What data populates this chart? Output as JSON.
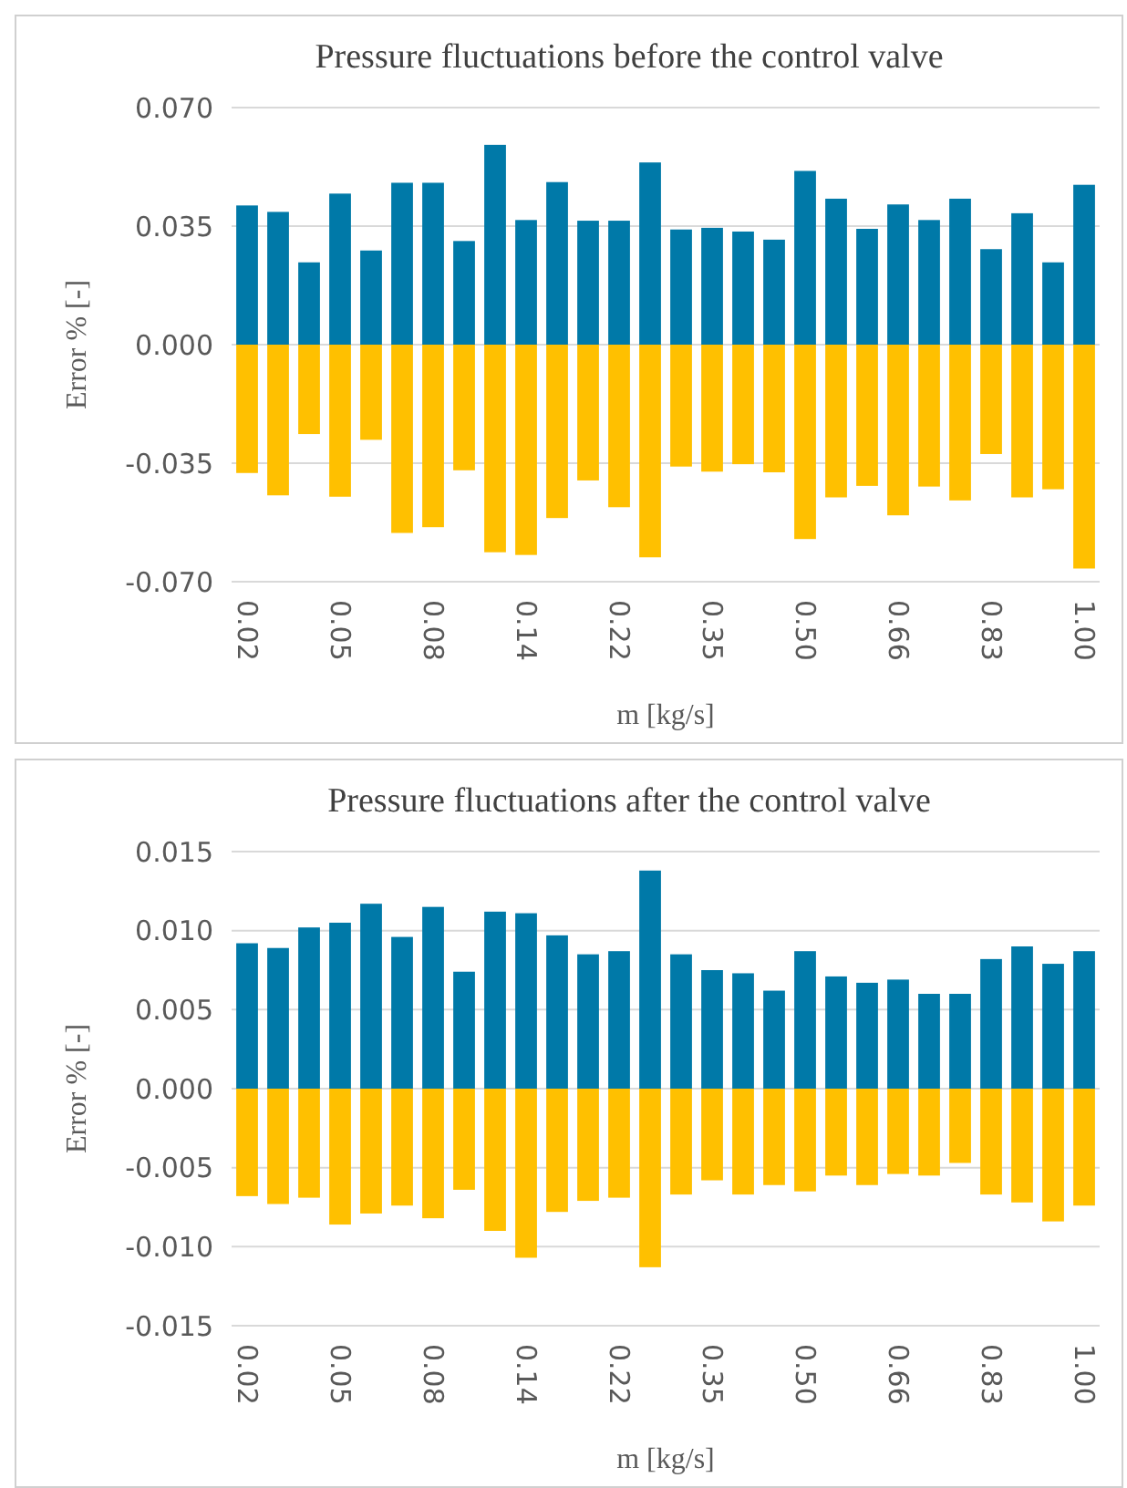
{
  "chart_data": [
    {
      "type": "bar",
      "title": "Pressure fluctuations before the control valve",
      "xlabel": "m [kg/s]",
      "ylabel": "Error % [-]",
      "stacked": true,
      "grid": "y",
      "categories": [
        "0.02",
        null,
        null,
        "0.05",
        null,
        null,
        "0.08",
        null,
        null,
        "0.14",
        null,
        null,
        "0.22",
        null,
        null,
        "0.35",
        null,
        null,
        "0.50",
        null,
        null,
        "0.66",
        null,
        null,
        "0.83",
        null,
        null,
        "1.00"
      ],
      "ylim": [
        -0.07,
        0.07
      ],
      "yticks": [
        {
          "value": -0.07,
          "label": "-0.070"
        },
        {
          "value": -0.035,
          "label": "-0.035"
        },
        {
          "value": 0,
          "label": "0.000"
        },
        {
          "value": 0.035,
          "label": "0.035"
        },
        {
          "value": 0.07,
          "label": "0.070"
        }
      ],
      "series": [
        {
          "color": "#0079a8",
          "values": [
            0.0411,
            0.0392,
            0.0243,
            0.0446,
            0.0278,
            0.0478,
            0.0478,
            0.0306,
            0.059,
            0.0368,
            0.048,
            0.0366,
            0.0366,
            0.0538,
            0.034,
            0.0345,
            0.0334,
            0.031,
            0.0513,
            0.0431,
            0.0342,
            0.0414,
            0.0368,
            0.0431,
            0.0282,
            0.0388,
            0.0243,
            0.0472
          ]
        },
        {
          "color": "#ffc000",
          "values": [
            -0.0379,
            -0.0445,
            -0.0264,
            -0.0449,
            -0.0281,
            -0.0556,
            -0.0539,
            -0.0371,
            -0.0613,
            -0.0621,
            -0.0512,
            -0.0401,
            -0.048,
            -0.0628,
            -0.036,
            -0.0375,
            -0.0353,
            -0.0377,
            -0.0574,
            -0.0451,
            -0.0417,
            -0.0504,
            -0.0419,
            -0.046,
            -0.0323,
            -0.0451,
            -0.0427,
            -0.0661
          ]
        }
      ]
    },
    {
      "type": "bar",
      "title": "Pressure fluctuations after the control valve",
      "xlabel": "m [kg/s]",
      "ylabel": "Error % [-]",
      "stacked": true,
      "grid": "y",
      "categories": [
        "0.02",
        null,
        null,
        "0.05",
        null,
        null,
        "0.08",
        null,
        null,
        "0.14",
        null,
        null,
        "0.22",
        null,
        null,
        "0.35",
        null,
        null,
        "0.50",
        null,
        null,
        "0.66",
        null,
        null,
        "0.83",
        null,
        null,
        "1.00"
      ],
      "ylim": [
        -0.015,
        0.015
      ],
      "yticks": [
        {
          "value": -0.015,
          "label": "-0.015"
        },
        {
          "value": -0.01,
          "label": "-0.010"
        },
        {
          "value": -0.005,
          "label": "-0.005"
        },
        {
          "value": 0,
          "label": "0.000"
        },
        {
          "value": 0.005,
          "label": "0.005"
        },
        {
          "value": 0.01,
          "label": "0.010"
        },
        {
          "value": 0.015,
          "label": "0.015"
        }
      ],
      "series": [
        {
          "color": "#0079a8",
          "values": [
            0.0092,
            0.0089,
            0.0102,
            0.0105,
            0.0117,
            0.0096,
            0.0115,
            0.0074,
            0.0112,
            0.0111,
            0.0097,
            0.0085,
            0.0087,
            0.0138,
            0.0085,
            0.0075,
            0.0073,
            0.0062,
            0.0087,
            0.0071,
            0.0067,
            0.0069,
            0.006,
            0.006,
            0.0082,
            0.009,
            0.0079,
            0.0087
          ]
        },
        {
          "color": "#ffc000",
          "values": [
            -0.0068,
            -0.0073,
            -0.0069,
            -0.0086,
            -0.0079,
            -0.0074,
            -0.0082,
            -0.0064,
            -0.009,
            -0.0107,
            -0.0078,
            -0.0071,
            -0.0069,
            -0.0113,
            -0.0067,
            -0.0058,
            -0.0067,
            -0.0061,
            -0.0065,
            -0.0055,
            -0.0061,
            -0.0054,
            -0.0055,
            -0.0047,
            -0.0067,
            -0.0072,
            -0.0084,
            -0.0074
          ]
        }
      ]
    }
  ]
}
